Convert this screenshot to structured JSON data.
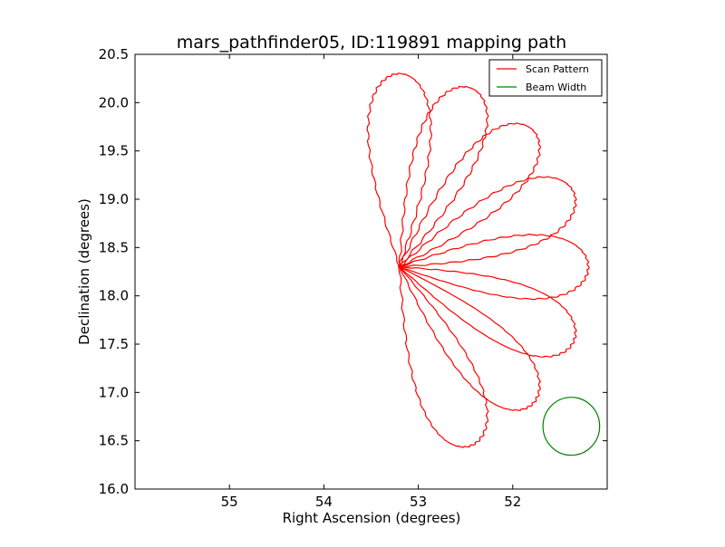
{
  "chart_data": {
    "type": "line",
    "title": "mars_pathfinder05, ID:119891 mapping path",
    "xlabel": "Right Ascension (degrees)",
    "ylabel": "Declination (degrees)",
    "xlim": [
      56.0,
      51.0
    ],
    "ylim": [
      16.0,
      20.5
    ],
    "x_reversed": true,
    "xticks": [
      55,
      54,
      53,
      52
    ],
    "xtick_labels": [
      "55",
      "54",
      "53",
      "52"
    ],
    "yticks": [
      16.0,
      16.5,
      17.0,
      17.5,
      18.0,
      18.5,
      19.0,
      19.5,
      20.0,
      20.5
    ],
    "ytick_labels": [
      "16.0",
      "16.5",
      "17.0",
      "17.5",
      "18.0",
      "18.5",
      "19.0",
      "19.5",
      "20.0",
      "20.5"
    ],
    "grid": false,
    "legend_position": "top-right",
    "series": [
      {
        "name": "Scan Pattern",
        "color": "#ff0000",
        "shape": "rose",
        "center": [
          53.2,
          18.3
        ],
        "petals": 8,
        "petal_length": 2.0,
        "petal_width": 0.35
      },
      {
        "name": "Beam Width",
        "color": "#008000",
        "shape": "circle",
        "center": [
          51.38,
          16.65
        ],
        "radius": 0.3
      }
    ]
  },
  "legend": {
    "items": [
      {
        "label": "Scan Pattern",
        "color": "#ff0000"
      },
      {
        "label": "Beam Width",
        "color": "#008000"
      }
    ]
  }
}
